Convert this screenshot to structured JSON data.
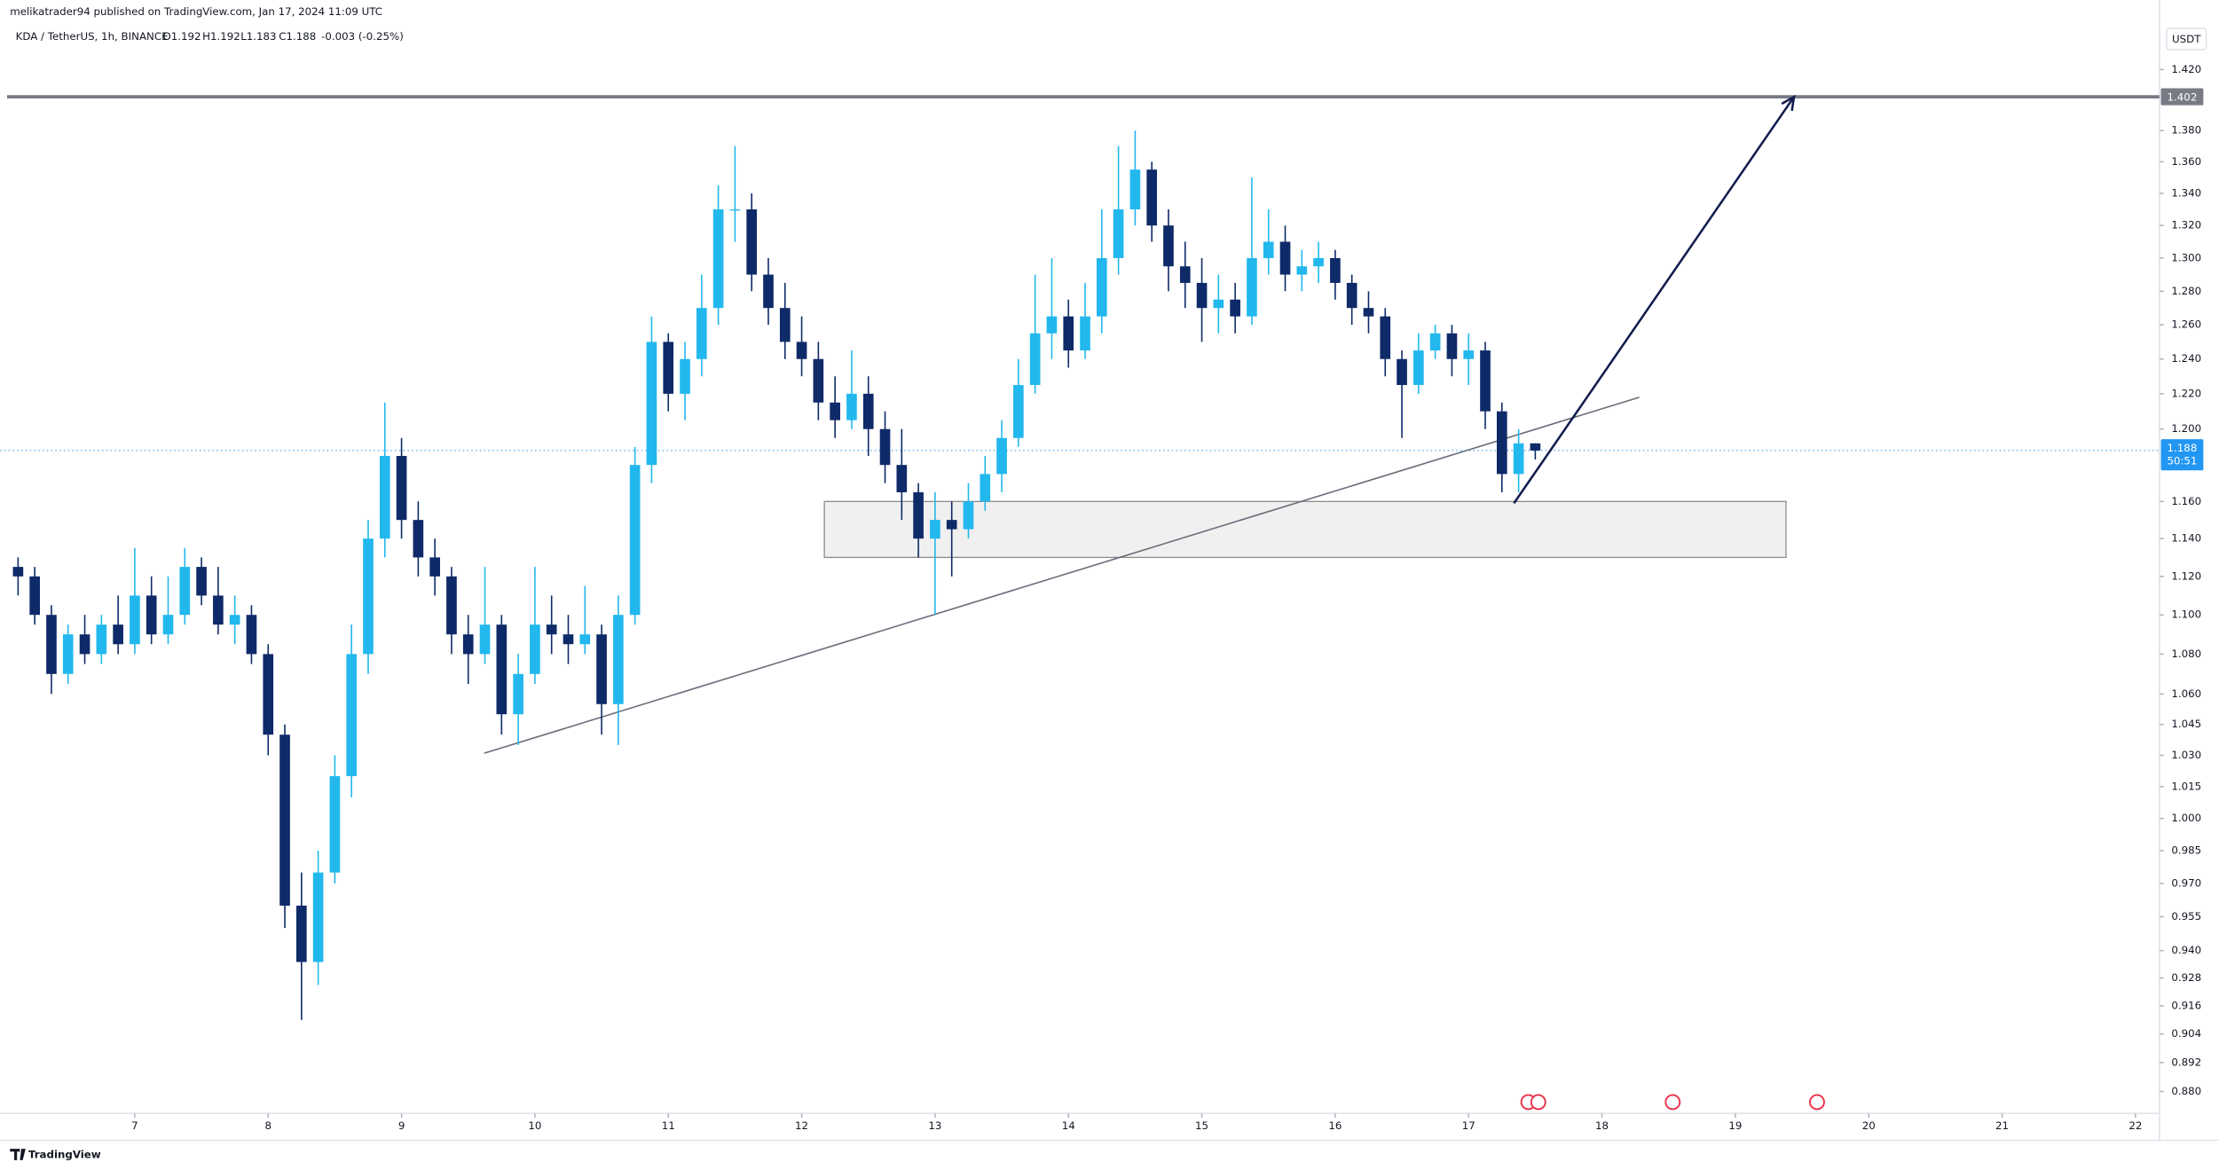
{
  "header": {
    "publisher": "melikatrader94 published on TradingView.com, Jan 17, 2024 11:09 UTC",
    "symbol": "KDA / TetherUS, 1h, BINANCE",
    "ohlc": [
      "O1.192",
      "H1.192",
      "L1.183",
      "C1.188"
    ],
    "change": "-0.003 (-0.25%)"
  },
  "chart_data": {
    "type": "candlestick",
    "unit": "USDT",
    "log_scale": true,
    "up_color": "#22b8ee",
    "down_color": "#0e2a68",
    "xlim": [
      5.99,
      22.18
    ],
    "xticks": [
      7,
      8,
      9,
      10,
      11,
      12,
      13,
      14,
      15,
      16,
      17,
      18,
      19,
      20,
      21,
      22
    ],
    "ylim": [
      0.871,
      1.467
    ],
    "yticks": [
      {
        "value": 1.42,
        "label": "1.420"
      },
      {
        "value": 1.38,
        "label": "1.380"
      },
      {
        "value": 1.36,
        "label": "1.360"
      },
      {
        "value": 1.34,
        "label": "1.340"
      },
      {
        "value": 1.32,
        "label": "1.320"
      },
      {
        "value": 1.3,
        "label": "1.300"
      },
      {
        "value": 1.28,
        "label": "1.280"
      },
      {
        "value": 1.26,
        "label": "1.260"
      },
      {
        "value": 1.24,
        "label": "1.240"
      },
      {
        "value": 1.22,
        "label": "1.220"
      },
      {
        "value": 1.2,
        "label": "1.200"
      },
      {
        "value": 1.16,
        "label": "1.160"
      },
      {
        "value": 1.14,
        "label": "1.140"
      },
      {
        "value": 1.12,
        "label": "1.120"
      },
      {
        "value": 1.1,
        "label": "1.100"
      },
      {
        "value": 1.08,
        "label": "1.080"
      },
      {
        "value": 1.06,
        "label": "1.060"
      },
      1.045,
      {
        "value": 1.03,
        "label": "1.030"
      },
      1.015,
      {
        "value": 1.0,
        "label": "1.000"
      },
      0.985,
      {
        "value": 0.97,
        "label": "0.970"
      },
      0.955,
      {
        "value": 0.94,
        "label": "0.940"
      },
      0.928,
      0.916,
      0.904,
      0.892,
      {
        "value": 0.88,
        "label": "0.880"
      }
    ],
    "x": [
      6.125,
      6.25,
      6.375,
      6.5,
      6.625,
      6.75,
      6.875,
      7.0,
      7.125,
      7.25,
      7.375,
      7.5,
      7.625,
      7.75,
      7.875,
      8.0,
      8.125,
      8.25,
      8.375,
      8.5,
      8.625,
      8.75,
      8.875,
      9.0,
      9.125,
      9.25,
      9.375,
      9.5,
      9.625,
      9.75,
      9.875,
      10.0,
      10.125,
      10.25,
      10.375,
      10.5,
      10.625,
      10.75,
      10.875,
      11.0,
      11.125,
      11.25,
      11.375,
      11.5,
      11.625,
      11.75,
      11.875,
      12.0,
      12.125,
      12.25,
      12.375,
      12.5,
      12.625,
      12.75,
      12.875,
      13.0,
      13.125,
      13.25,
      13.375,
      13.5,
      13.625,
      13.75,
      13.875,
      14.0,
      14.125,
      14.25,
      14.375,
      14.5,
      14.625,
      14.75,
      14.875,
      15.0,
      15.125,
      15.25,
      15.375,
      15.5,
      15.625,
      15.75,
      15.875,
      16.0,
      16.125,
      16.25,
      16.375,
      16.5,
      16.625,
      16.75,
      16.875,
      17.0,
      17.125,
      17.25,
      17.375,
      17.5
    ],
    "open": [
      1.125,
      1.12,
      1.1,
      1.07,
      1.09,
      1.08,
      1.095,
      1.085,
      1.11,
      1.09,
      1.1,
      1.125,
      1.11,
      1.095,
      1.1,
      1.08,
      1.04,
      0.96,
      0.935,
      0.975,
      1.02,
      1.08,
      1.14,
      1.185,
      1.15,
      1.13,
      1.12,
      1.09,
      1.08,
      1.095,
      1.05,
      1.07,
      1.095,
      1.09,
      1.085,
      1.09,
      1.055,
      1.1,
      1.18,
      1.25,
      1.22,
      1.24,
      1.27,
      1.33,
      1.33,
      1.29,
      1.27,
      1.25,
      1.24,
      1.215,
      1.205,
      1.22,
      1.2,
      1.18,
      1.165,
      1.14,
      1.15,
      1.145,
      1.16,
      1.175,
      1.195,
      1.225,
      1.255,
      1.265,
      1.245,
      1.265,
      1.3,
      1.33,
      1.355,
      1.32,
      1.295,
      1.285,
      1.27,
      1.275,
      1.265,
      1.3,
      1.31,
      1.29,
      1.295,
      1.3,
      1.285,
      1.27,
      1.265,
      1.24,
      1.225,
      1.245,
      1.255,
      1.24,
      1.245,
      1.21,
      1.175,
      1.192
    ],
    "high": [
      1.13,
      1.125,
      1.105,
      1.095,
      1.1,
      1.1,
      1.11,
      1.135,
      1.12,
      1.12,
      1.135,
      1.13,
      1.125,
      1.11,
      1.105,
      1.085,
      1.045,
      0.975,
      0.985,
      1.03,
      1.095,
      1.15,
      1.215,
      1.195,
      1.16,
      1.14,
      1.125,
      1.1,
      1.125,
      1.1,
      1.08,
      1.125,
      1.11,
      1.1,
      1.115,
      1.095,
      1.11,
      1.19,
      1.265,
      1.255,
      1.25,
      1.29,
      1.345,
      1.37,
      1.34,
      1.3,
      1.285,
      1.265,
      1.25,
      1.23,
      1.245,
      1.23,
      1.21,
      1.2,
      1.17,
      1.165,
      1.16,
      1.17,
      1.185,
      1.205,
      1.24,
      1.29,
      1.3,
      1.275,
      1.285,
      1.33,
      1.37,
      1.38,
      1.36,
      1.33,
      1.31,
      1.3,
      1.29,
      1.285,
      1.35,
      1.33,
      1.32,
      1.305,
      1.31,
      1.305,
      1.29,
      1.28,
      1.27,
      1.245,
      1.255,
      1.26,
      1.26,
      1.255,
      1.25,
      1.215,
      1.2,
      1.192
    ],
    "low": [
      1.11,
      1.095,
      1.06,
      1.065,
      1.075,
      1.075,
      1.08,
      1.08,
      1.085,
      1.085,
      1.095,
      1.105,
      1.09,
      1.085,
      1.075,
      1.03,
      0.95,
      0.91,
      0.925,
      0.97,
      1.01,
      1.07,
      1.13,
      1.14,
      1.12,
      1.11,
      1.08,
      1.065,
      1.075,
      1.04,
      1.035,
      1.065,
      1.08,
      1.075,
      1.08,
      1.04,
      1.035,
      1.095,
      1.17,
      1.21,
      1.205,
      1.23,
      1.26,
      1.31,
      1.28,
      1.26,
      1.24,
      1.23,
      1.205,
      1.195,
      1.2,
      1.185,
      1.17,
      1.15,
      1.13,
      1.1,
      1.12,
      1.14,
      1.155,
      1.165,
      1.19,
      1.22,
      1.24,
      1.235,
      1.24,
      1.255,
      1.29,
      1.32,
      1.31,
      1.28,
      1.27,
      1.25,
      1.255,
      1.255,
      1.26,
      1.29,
      1.28,
      1.28,
      1.285,
      1.275,
      1.26,
      1.255,
      1.23,
      1.195,
      1.22,
      1.24,
      1.23,
      1.225,
      1.2,
      1.165,
      1.165,
      1.183
    ],
    "close": [
      1.12,
      1.1,
      1.07,
      1.09,
      1.08,
      1.095,
      1.085,
      1.11,
      1.09,
      1.1,
      1.125,
      1.11,
      1.095,
      1.1,
      1.08,
      1.04,
      0.96,
      0.935,
      0.975,
      1.02,
      1.08,
      1.14,
      1.185,
      1.15,
      1.13,
      1.12,
      1.09,
      1.08,
      1.095,
      1.05,
      1.07,
      1.095,
      1.09,
      1.085,
      1.09,
      1.055,
      1.1,
      1.18,
      1.25,
      1.22,
      1.24,
      1.27,
      1.33,
      1.33,
      1.29,
      1.27,
      1.25,
      1.24,
      1.215,
      1.205,
      1.22,
      1.2,
      1.18,
      1.165,
      1.14,
      1.15,
      1.145,
      1.16,
      1.175,
      1.195,
      1.225,
      1.255,
      1.265,
      1.245,
      1.265,
      1.3,
      1.33,
      1.355,
      1.32,
      1.295,
      1.285,
      1.27,
      1.275,
      1.265,
      1.3,
      1.31,
      1.29,
      1.295,
      1.3,
      1.285,
      1.27,
      1.265,
      1.24,
      1.225,
      1.245,
      1.255,
      1.24,
      1.245,
      1.21,
      1.175,
      1.192,
      1.188
    ],
    "level": 1.402,
    "last_price": 1.188,
    "countdown": "50:51",
    "trendline": {
      "x": [
        9.62,
        18.28
      ],
      "y": [
        1.031,
        1.218
      ]
    },
    "zone": {
      "x": [
        12.17,
        19.38
      ],
      "y": [
        1.13,
        1.16
      ]
    },
    "arrow": {
      "x": [
        17.34,
        19.44
      ],
      "y": [
        1.159,
        1.402
      ]
    }
  },
  "footer": {
    "brand": "TradingView"
  }
}
